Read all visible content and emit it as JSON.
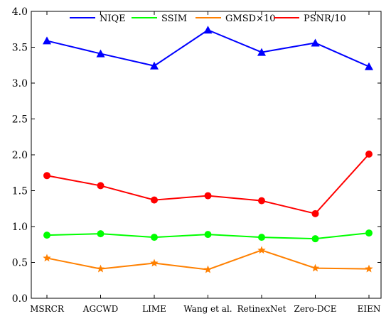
{
  "chart_data": {
    "type": "line",
    "categories": [
      "MSRCR",
      "AGCWD",
      "LIME",
      "Wang et al.",
      "RetinexNet",
      "Zero-DCE",
      "EIEN"
    ],
    "ylim": [
      0.0,
      4.0
    ],
    "yticks": [
      "0.0",
      "0.5",
      "1.0",
      "1.5",
      "2.0",
      "2.5",
      "3.0",
      "3.5",
      "4.0"
    ],
    "grid": false,
    "legend_position": "top",
    "series": [
      {
        "name": "NIQE",
        "color": "#0000ff",
        "marker": "triangle",
        "values": [
          3.59,
          3.41,
          3.24,
          3.74,
          3.43,
          3.56,
          3.23
        ]
      },
      {
        "name": "SSIM",
        "color": "#00ff00",
        "marker": "circle",
        "values": [
          0.88,
          0.9,
          0.85,
          0.89,
          0.85,
          0.83,
          0.91
        ]
      },
      {
        "name": "GMSD×10",
        "color": "#ff8000",
        "marker": "star",
        "values": [
          0.56,
          0.41,
          0.49,
          0.4,
          0.67,
          0.42,
          0.41
        ]
      },
      {
        "name": "PSNR/10",
        "color": "#ff0000",
        "marker": "circle",
        "values": [
          1.71,
          1.57,
          1.37,
          1.43,
          1.36,
          1.18,
          2.01
        ]
      }
    ]
  }
}
